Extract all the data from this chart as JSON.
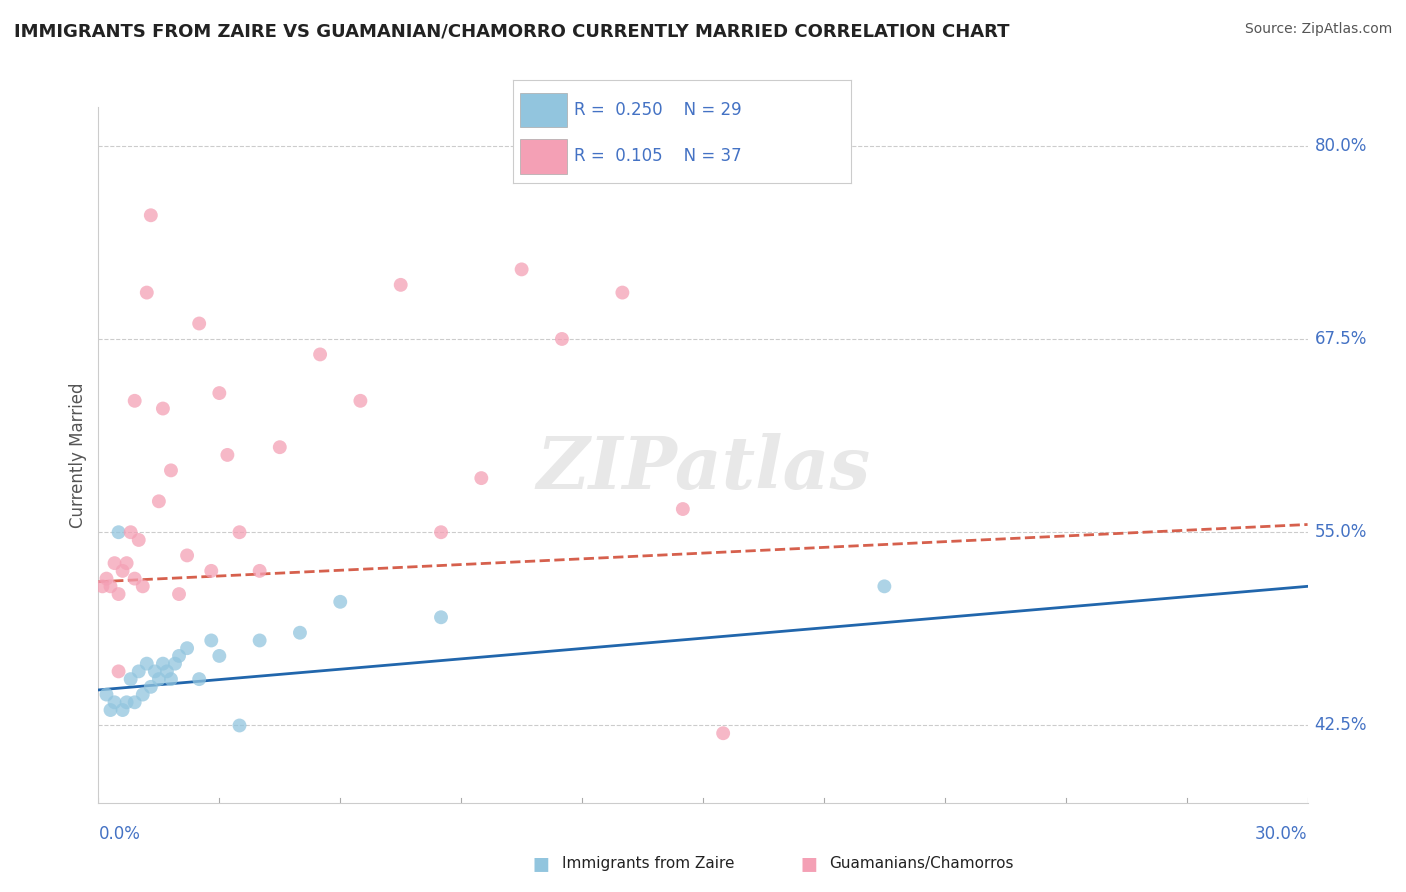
{
  "title": "IMMIGRANTS FROM ZAIRE VS GUAMANIAN/CHAMORRO CURRENTLY MARRIED CORRELATION CHART",
  "source": "Source: ZipAtlas.com",
  "ylabel": "Currently Married",
  "xlim": [
    0.0,
    30.0
  ],
  "ylim": [
    37.5,
    82.5
  ],
  "watermark": "ZIPatlas",
  "right_yticks": [
    42.5,
    55.0,
    67.5,
    80.0
  ],
  "blue_dot_color": "#92c5de",
  "pink_dot_color": "#f4a0b5",
  "blue_line_color": "#2166ac",
  "pink_line_color": "#d6604d",
  "grid_color": "#cccccc",
  "dot_size": 100,
  "dot_alpha": 0.75,
  "blue_scatter_x": [
    0.2,
    0.3,
    0.4,
    0.5,
    0.6,
    0.7,
    0.8,
    0.9,
    1.0,
    1.1,
    1.2,
    1.3,
    1.4,
    1.5,
    1.6,
    1.7,
    1.8,
    1.9,
    2.0,
    2.2,
    2.5,
    2.8,
    3.0,
    3.5,
    4.0,
    5.0,
    6.0,
    8.5,
    19.5
  ],
  "blue_scatter_y": [
    44.5,
    43.5,
    44.0,
    55.0,
    43.5,
    44.0,
    45.5,
    44.0,
    46.0,
    44.5,
    46.5,
    45.0,
    46.0,
    45.5,
    46.5,
    46.0,
    45.5,
    46.5,
    47.0,
    47.5,
    45.5,
    48.0,
    47.0,
    42.5,
    48.0,
    48.5,
    50.5,
    49.5,
    51.5
  ],
  "pink_scatter_x": [
    0.1,
    0.2,
    0.3,
    0.4,
    0.5,
    0.6,
    0.7,
    0.8,
    0.9,
    1.0,
    1.1,
    1.2,
    1.5,
    1.6,
    1.8,
    2.0,
    2.2,
    2.5,
    3.0,
    3.5,
    4.0,
    4.5,
    5.5,
    6.5,
    7.5,
    8.5,
    9.5,
    10.5,
    11.5,
    13.0,
    15.5,
    3.2,
    2.8,
    1.3,
    0.9,
    0.5,
    14.5
  ],
  "pink_scatter_y": [
    51.5,
    52.0,
    51.5,
    53.0,
    51.0,
    52.5,
    53.0,
    55.0,
    52.0,
    54.5,
    51.5,
    70.5,
    57.0,
    63.0,
    59.0,
    51.0,
    53.5,
    68.5,
    64.0,
    55.0,
    52.5,
    60.5,
    66.5,
    63.5,
    71.0,
    55.0,
    58.5,
    72.0,
    67.5,
    70.5,
    42.0,
    60.0,
    52.5,
    75.5,
    63.5,
    46.0,
    56.5
  ],
  "blue_line_x0": 0.0,
  "blue_line_x1": 30.0,
  "blue_line_y0": 44.8,
  "blue_line_y1": 51.5,
  "pink_line_x0": 0.0,
  "pink_line_x1": 30.0,
  "pink_line_y0": 51.8,
  "pink_line_y1": 55.5,
  "legend_R_blue": "0.250",
  "legend_N_blue": "29",
  "legend_R_pink": "0.105",
  "legend_N_pink": "37",
  "title_fontsize": 13,
  "source_fontsize": 10,
  "axis_label_color": "#4472c4",
  "title_color": "#222222",
  "source_color": "#555555"
}
